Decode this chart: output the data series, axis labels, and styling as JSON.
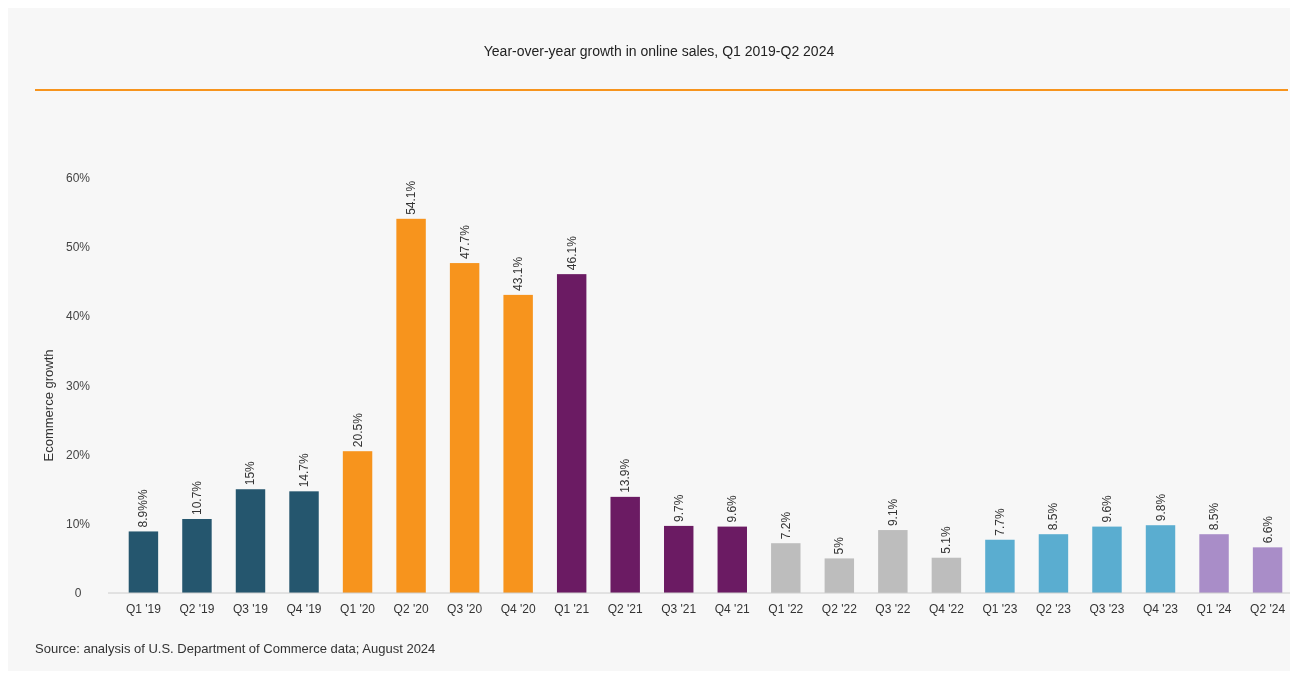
{
  "chart_data": {
    "type": "bar",
    "title": "Year-over-year growth in online sales, Q1 2019-Q2 2024",
    "ylabel": "Ecommerce growth",
    "categories": [
      "Q1 '19",
      "Q2 '19",
      "Q3 '19",
      "Q4 '19",
      "Q1 '20",
      "Q2 '20",
      "Q3 '20",
      "Q4 '20",
      "Q1 '21",
      "Q2 '21",
      "Q3 '21",
      "Q4 '21",
      "Q1 '22",
      "Q2 '22",
      "Q3 '22",
      "Q4 '22",
      "Q1 '23",
      "Q2 '23",
      "Q3 '23",
      "Q4 '23",
      "Q1 '24",
      "Q2 '24"
    ],
    "values": [
      8.9,
      10.7,
      15,
      14.7,
      20.5,
      54.1,
      47.7,
      43.1,
      46.1,
      13.9,
      9.7,
      9.6,
      7.2,
      5,
      9.1,
      5.1,
      7.7,
      8.5,
      9.6,
      9.8,
      8.5,
      6.6
    ],
    "value_labels": [
      "8.9%%",
      "10.7%",
      "15%",
      "14.7%",
      "20.5%",
      "54.1%",
      "47.7%",
      "43.1%",
      "46.1%",
      "13.9%",
      "9.7%",
      "9.6%",
      "7.2%",
      "5%",
      "9.1%",
      "5.1%",
      "7.7%",
      "8.5%",
      "9.6%",
      "9.8%",
      "8.5%",
      "6.6%"
    ],
    "colors": [
      "#25566e",
      "#25566e",
      "#25566e",
      "#25566e",
      "#f7941d",
      "#f7941d",
      "#f7941d",
      "#f7941d",
      "#6b1b63",
      "#6b1b63",
      "#6b1b63",
      "#6b1b63",
      "#bdbdbd",
      "#bdbdbd",
      "#bdbdbd",
      "#bdbdbd",
      "#5aadd0",
      "#5aadd0",
      "#5aadd0",
      "#5aadd0",
      "#a98dc8",
      "#a98dc8"
    ],
    "ylim": [
      0,
      60
    ],
    "yticks": [
      {
        "value": 0,
        "label": "0"
      },
      {
        "value": 10,
        "label": "10%"
      },
      {
        "value": 20,
        "label": "20%"
      },
      {
        "value": 30,
        "label": "30%"
      },
      {
        "value": 40,
        "label": "40%"
      },
      {
        "value": 50,
        "label": "50%"
      },
      {
        "value": 60,
        "label": "60%"
      }
    ],
    "grid": false,
    "annotations": [
      "Source: analysis of U.S. Department of Commerce data; August 2024"
    ]
  }
}
